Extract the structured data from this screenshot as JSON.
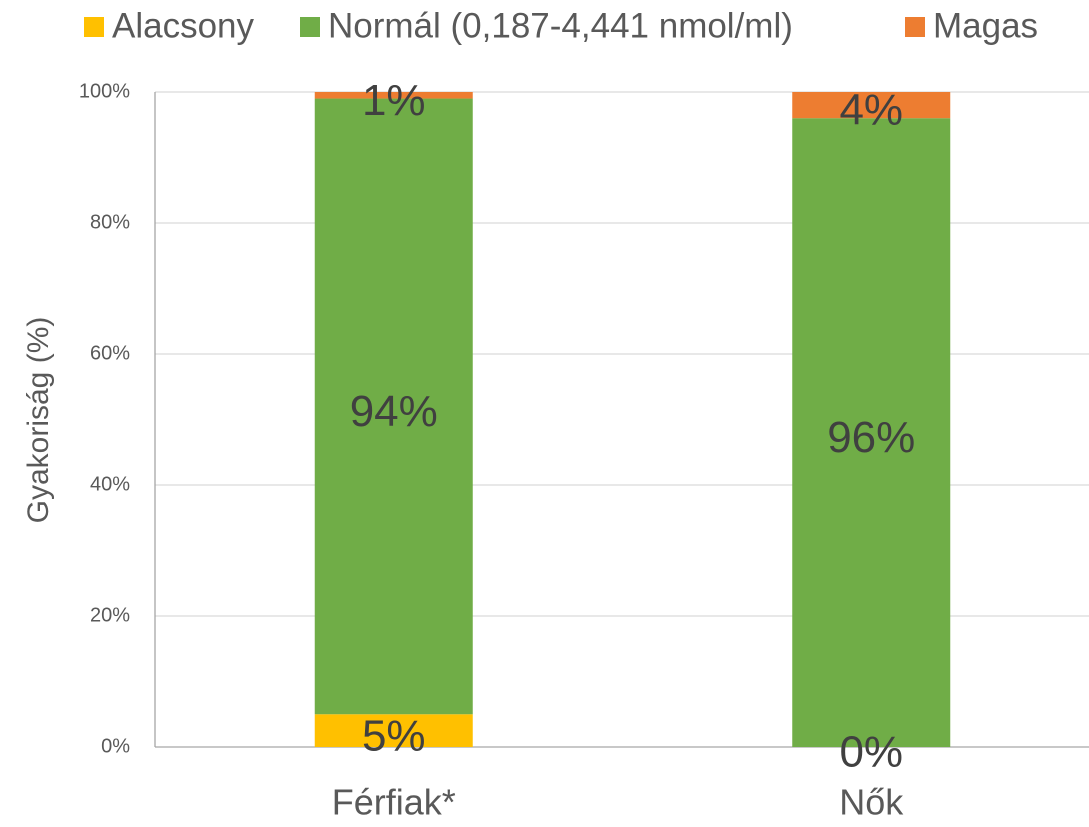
{
  "chart_data": {
    "type": "stacked_bar",
    "categories": [
      "Férfiak*",
      "Nők"
    ],
    "series": [
      {
        "name": "Alacsony",
        "color": "#ffc000",
        "values": [
          5,
          0
        ],
        "value_labels": [
          "5%",
          "0%"
        ]
      },
      {
        "name": "Normál (0,187-4,441 nmol/ml)",
        "color": "#70ad47",
        "values": [
          94,
          96
        ],
        "value_labels": [
          "94%",
          "96%"
        ]
      },
      {
        "name": "Magas",
        "color": "#ed7d31",
        "values": [
          1,
          4
        ],
        "value_labels": [
          "1%",
          "4%"
        ]
      }
    ],
    "y_label": "Gyakoriság (%)",
    "ylim": [
      0,
      100
    ],
    "yticks": [
      {
        "value": 0,
        "label": "0%"
      },
      {
        "value": 20,
        "label": "20%"
      },
      {
        "value": 40,
        "label": "40%"
      },
      {
        "value": 60,
        "label": "60%"
      },
      {
        "value": 80,
        "label": "80%"
      },
      {
        "value": 100,
        "label": "100%"
      }
    ],
    "grid": true,
    "legend": "top"
  }
}
